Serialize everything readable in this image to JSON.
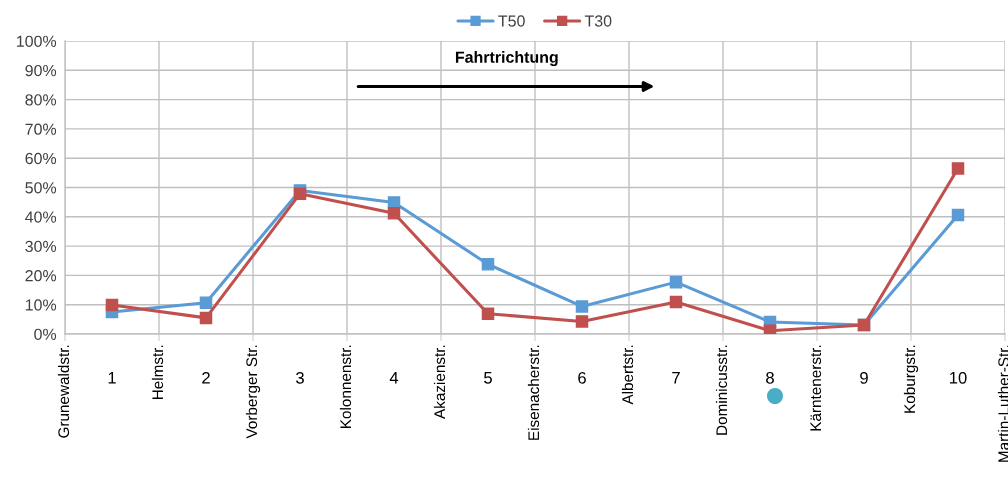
{
  "chart_data": {
    "type": "line",
    "annotations": [
      "Fahrtrichtung",
      "Grunewaldstr.",
      "Helmstr.",
      "Vorberger Str.",
      "Kolonnenstr.",
      "Akazienstr.",
      "Eisenacherstr.",
      "Albertstr.",
      "Dominicusstr.",
      "Kärntenerstr.",
      "Koburgstr.",
      "Martin-Luther-Str."
    ],
    "categories": [
      "1",
      "2",
      "3",
      "4",
      "5",
      "6",
      "7",
      "8",
      "9",
      "10"
    ],
    "series": [
      {
        "name": "T50",
        "color": "#5b9bd5",
        "values": [
          7.5,
          10.7,
          49.0,
          44.9,
          23.8,
          9.4,
          17.7,
          4.1,
          3.1,
          40.6
        ]
      },
      {
        "name": "T30",
        "color": "#c0504d",
        "values": [
          9.9,
          5.5,
          47.9,
          41.2,
          6.9,
          4.3,
          10.9,
          1.1,
          3.1,
          56.5
        ]
      }
    ],
    "ylim": [
      0,
      100
    ],
    "yticks": [
      {
        "value": 0,
        "label": "0%"
      },
      {
        "value": 10,
        "label": "10%"
      },
      {
        "value": 20,
        "label": "20%"
      },
      {
        "value": 30,
        "label": "30%"
      },
      {
        "value": 40,
        "label": "40%"
      },
      {
        "value": 50,
        "label": "50%"
      },
      {
        "value": 60,
        "label": "60%"
      },
      {
        "value": 70,
        "label": "70%"
      },
      {
        "value": 80,
        "label": "80%"
      },
      {
        "value": 90,
        "label": "90%"
      },
      {
        "value": 100,
        "label": "100%"
      }
    ],
    "grid": true,
    "legend": "top",
    "marker": "square",
    "line_style": "solid"
  }
}
